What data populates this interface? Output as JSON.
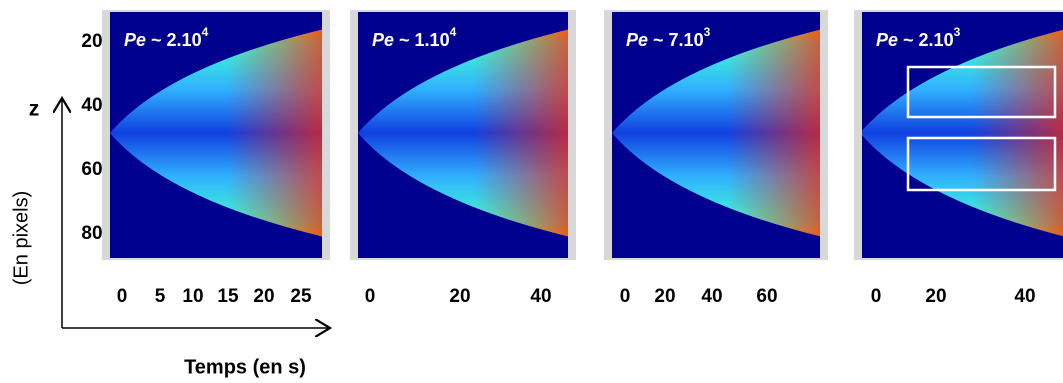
{
  "figure": {
    "y_axis": {
      "label": "z",
      "unit": "(En pixels)",
      "ticks": [
        "20",
        "40",
        "60",
        "80"
      ]
    },
    "x_axis": {
      "label": "Temps (en s)"
    },
    "panels": [
      {
        "title": {
          "symbol": "Pe",
          "text": " ~ 2.10",
          "exponent": "4"
        },
        "xticks": [
          "0",
          "5",
          "10",
          "15",
          "20",
          "25"
        ]
      },
      {
        "title": {
          "symbol": "Pe",
          "text": " ~ 1.10",
          "exponent": "4"
        },
        "xticks": [
          "0",
          "20",
          "40"
        ]
      },
      {
        "title": {
          "symbol": "Pe",
          "text": " ~ 7.10",
          "exponent": "3"
        },
        "xticks": [
          "0",
          "20",
          "40",
          "60"
        ]
      },
      {
        "title": {
          "symbol": "Pe",
          "text": " ~ 2.10",
          "exponent": "3"
        },
        "xticks": [
          "0",
          "20",
          "40"
        ]
      }
    ]
  }
}
